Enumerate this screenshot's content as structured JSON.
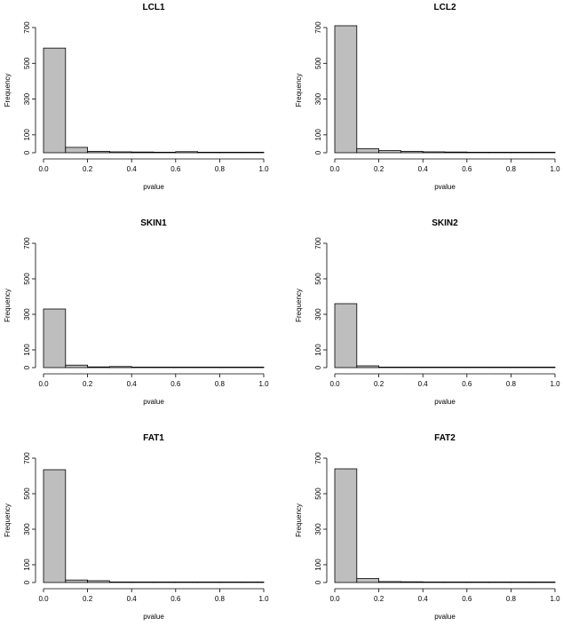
{
  "chart_data": [
    {
      "type": "bar",
      "title": "LCL1",
      "xlabel": "pvalue",
      "ylabel": "Frequency",
      "bin_edges": [
        0.0,
        0.1,
        0.2,
        0.3,
        0.4,
        0.5,
        0.6,
        0.7,
        0.8,
        0.9,
        1.0
      ],
      "values": [
        585,
        30,
        8,
        5,
        4,
        3,
        6,
        3,
        2,
        1
      ],
      "xlim": [
        0,
        1
      ],
      "ylim": [
        0,
        700
      ],
      "xticks": [
        "0.0",
        "0.2",
        "0.4",
        "0.6",
        "0.8",
        "1.0"
      ],
      "yticks": [
        "0",
        "100",
        "300",
        "500",
        "700"
      ],
      "bar_color": "#bebebe"
    },
    {
      "type": "bar",
      "title": "LCL2",
      "xlabel": "pvalue",
      "ylabel": "Frequency",
      "bin_edges": [
        0.0,
        0.1,
        0.2,
        0.3,
        0.4,
        0.5,
        0.6,
        0.7,
        0.8,
        0.9,
        1.0
      ],
      "values": [
        710,
        22,
        12,
        8,
        5,
        4,
        2,
        2,
        2,
        2
      ],
      "xlim": [
        0,
        1
      ],
      "ylim": [
        0,
        700
      ],
      "xticks": [
        "0.0",
        "0.2",
        "0.4",
        "0.6",
        "0.8",
        "1.0"
      ],
      "yticks": [
        "0",
        "100",
        "300",
        "500",
        "700"
      ],
      "bar_color": "#bebebe"
    },
    {
      "type": "bar",
      "title": "SKIN1",
      "xlabel": "pvalue",
      "ylabel": "Frequency",
      "bin_edges": [
        0.0,
        0.1,
        0.2,
        0.3,
        0.4,
        0.5,
        0.6,
        0.7,
        0.8,
        0.9,
        1.0
      ],
      "values": [
        330,
        14,
        4,
        6,
        1,
        3,
        1,
        2,
        1,
        1
      ],
      "xlim": [
        0,
        1
      ],
      "ylim": [
        0,
        700
      ],
      "xticks": [
        "0.0",
        "0.2",
        "0.4",
        "0.6",
        "0.8",
        "1.0"
      ],
      "yticks": [
        "0",
        "100",
        "300",
        "500",
        "700"
      ],
      "bar_color": "#bebebe"
    },
    {
      "type": "bar",
      "title": "SKIN2",
      "xlabel": "pvalue",
      "ylabel": "Frequency",
      "bin_edges": [
        0.0,
        0.1,
        0.2,
        0.3,
        0.4,
        0.5,
        0.6,
        0.7,
        0.8,
        0.9,
        1.0
      ],
      "values": [
        360,
        10,
        3,
        2,
        1,
        1,
        1,
        1,
        1,
        1
      ],
      "xlim": [
        0,
        1
      ],
      "ylim": [
        0,
        700
      ],
      "xticks": [
        "0.0",
        "0.2",
        "0.4",
        "0.6",
        "0.8",
        "1.0"
      ],
      "yticks": [
        "0",
        "100",
        "300",
        "500",
        "700"
      ],
      "bar_color": "#bebebe"
    },
    {
      "type": "bar",
      "title": "FAT1",
      "xlabel": "pvalue",
      "ylabel": "Frequency",
      "bin_edges": [
        0.0,
        0.1,
        0.2,
        0.3,
        0.4,
        0.5,
        0.6,
        0.7,
        0.8,
        0.9,
        1.0
      ],
      "values": [
        635,
        14,
        10,
        2,
        3,
        1,
        2,
        3,
        1,
        1
      ],
      "xlim": [
        0,
        1
      ],
      "ylim": [
        0,
        700
      ],
      "xticks": [
        "0.0",
        "0.2",
        "0.4",
        "0.6",
        "0.8",
        "1.0"
      ],
      "yticks": [
        "0",
        "100",
        "300",
        "500",
        "700"
      ],
      "bar_color": "#bebebe"
    },
    {
      "type": "bar",
      "title": "FAT2",
      "xlabel": "pvalue",
      "ylabel": "Frequency",
      "bin_edges": [
        0.0,
        0.1,
        0.2,
        0.3,
        0.4,
        0.5,
        0.6,
        0.7,
        0.8,
        0.9,
        1.0
      ],
      "values": [
        640,
        22,
        5,
        4,
        2,
        3,
        2,
        2,
        1,
        1
      ],
      "xlim": [
        0,
        1
      ],
      "ylim": [
        0,
        700
      ],
      "xticks": [
        "0.0",
        "0.2",
        "0.4",
        "0.6",
        "0.8",
        "1.0"
      ],
      "yticks": [
        "0",
        "100",
        "300",
        "500",
        "700"
      ],
      "bar_color": "#bebebe"
    }
  ]
}
